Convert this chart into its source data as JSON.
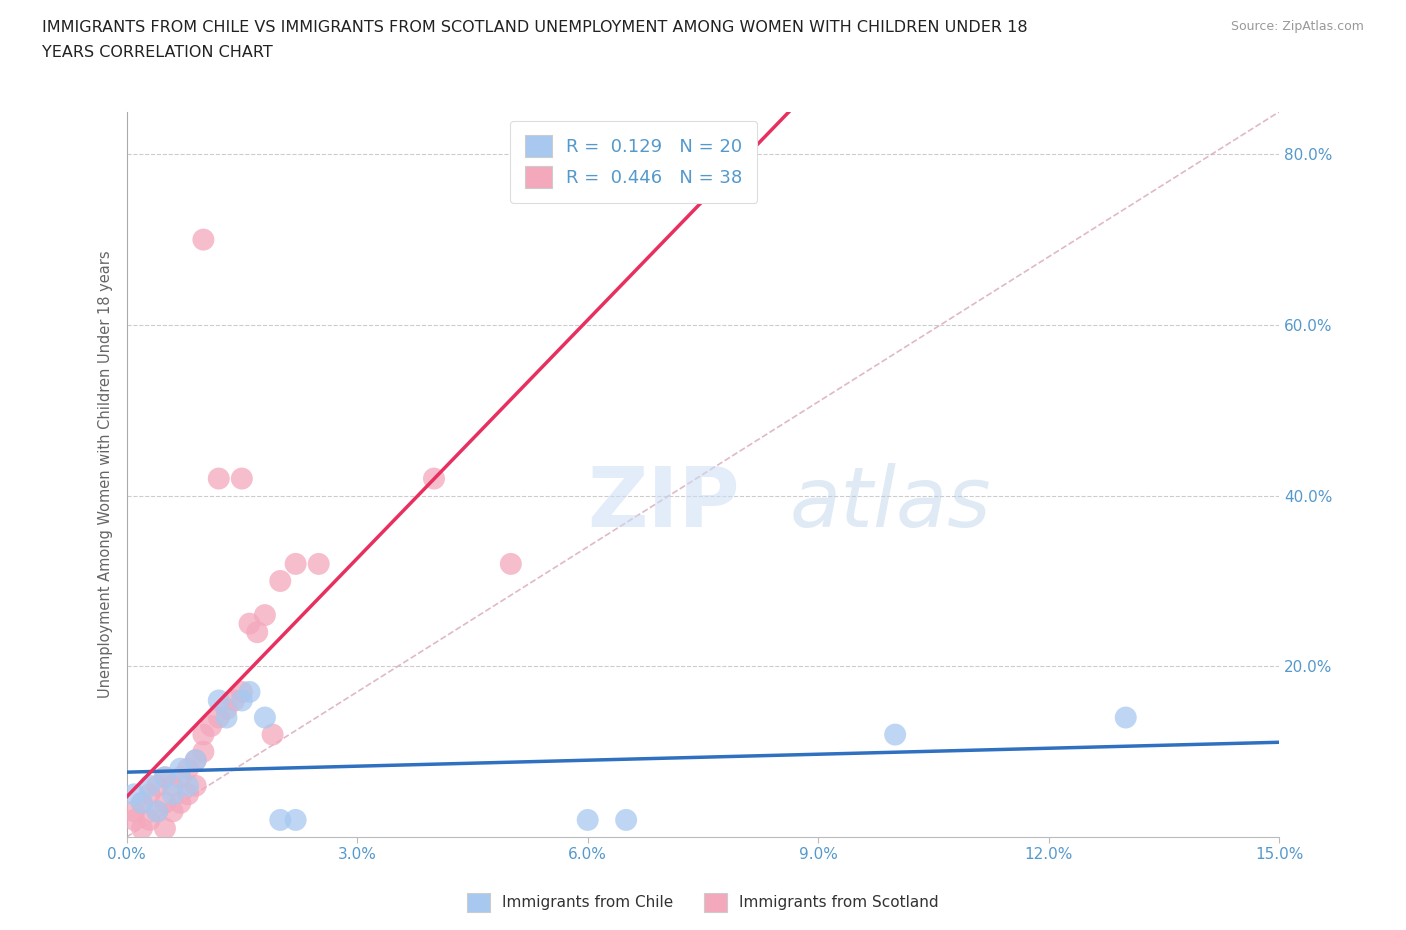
{
  "title_line1": "IMMIGRANTS FROM CHILE VS IMMIGRANTS FROM SCOTLAND UNEMPLOYMENT AMONG WOMEN WITH CHILDREN UNDER 18",
  "title_line2": "YEARS CORRELATION CHART",
  "source_text": "Source: ZipAtlas.com",
  "ylabel": "Unemployment Among Women with Children Under 18 years",
  "xlim": [
    0.0,
    0.15
  ],
  "ylim": [
    0.0,
    0.85
  ],
  "xticks": [
    0.0,
    0.03,
    0.06,
    0.09,
    0.12,
    0.15
  ],
  "xticklabels": [
    "0.0%",
    "3.0%",
    "6.0%",
    "9.0%",
    "12.0%",
    "15.0%"
  ],
  "yticks": [
    0.0,
    0.2,
    0.4,
    0.6,
    0.8
  ],
  "yticklabels": [
    "",
    "20.0%",
    "40.0%",
    "60.0%",
    "80.0%"
  ],
  "grid_color": "#cccccc",
  "chile_color": "#a8c8f0",
  "scotland_color": "#f4a8bc",
  "chile_line_color": "#3070c0",
  "scotland_line_color": "#e83060",
  "diag_color": "#d8a8b8",
  "chile_R": 0.129,
  "chile_N": 20,
  "scotland_R": 0.446,
  "scotland_N": 38,
  "chile_points_x": [
    0.001,
    0.002,
    0.003,
    0.004,
    0.005,
    0.006,
    0.007,
    0.008,
    0.009,
    0.012,
    0.013,
    0.015,
    0.016,
    0.018,
    0.02,
    0.022,
    0.06,
    0.065,
    0.1,
    0.13
  ],
  "chile_points_y": [
    0.05,
    0.04,
    0.06,
    0.03,
    0.07,
    0.05,
    0.08,
    0.06,
    0.09,
    0.16,
    0.14,
    0.16,
    0.17,
    0.14,
    0.02,
    0.02,
    0.02,
    0.02,
    0.12,
    0.14
  ],
  "scotland_points_x": [
    0.001,
    0.001,
    0.002,
    0.002,
    0.003,
    0.003,
    0.004,
    0.004,
    0.005,
    0.005,
    0.005,
    0.006,
    0.006,
    0.007,
    0.007,
    0.008,
    0.008,
    0.009,
    0.009,
    0.01,
    0.01,
    0.011,
    0.012,
    0.013,
    0.014,
    0.015,
    0.015,
    0.016,
    0.017,
    0.018,
    0.019,
    0.02,
    0.022,
    0.025,
    0.04,
    0.05,
    0.01,
    0.012
  ],
  "scotland_points_y": [
    0.02,
    0.03,
    0.01,
    0.04,
    0.02,
    0.05,
    0.03,
    0.06,
    0.01,
    0.04,
    0.07,
    0.03,
    0.06,
    0.04,
    0.07,
    0.05,
    0.08,
    0.06,
    0.09,
    0.1,
    0.12,
    0.13,
    0.14,
    0.15,
    0.16,
    0.17,
    0.42,
    0.25,
    0.24,
    0.26,
    0.12,
    0.3,
    0.32,
    0.32,
    0.42,
    0.32,
    0.7,
    0.42
  ],
  "bg_color": "#ffffff",
  "title_color": "#222222",
  "axis_label_color": "#666666",
  "tick_color": "#5599cc",
  "legend_labels": [
    "Immigrants from Chile",
    "Immigrants from Scotland"
  ]
}
